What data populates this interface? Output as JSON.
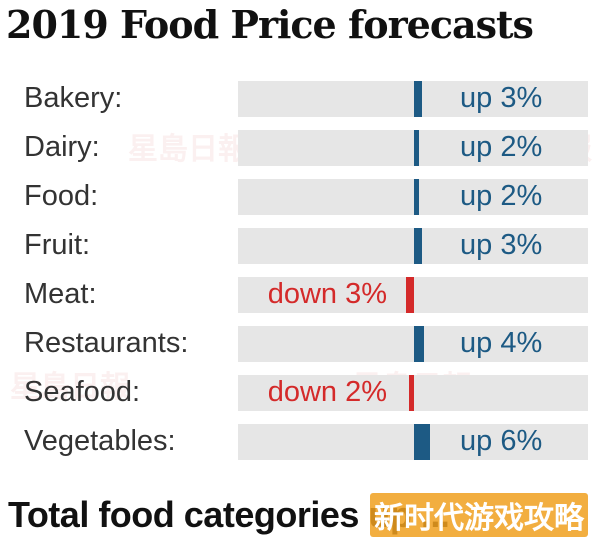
{
  "title": "2019 Food Price forecasts",
  "footer": "Total food categories up ...",
  "watermark_corner": "新时代游戏攻略",
  "colors": {
    "up": "#1d5a84",
    "down": "#d42a2a",
    "track": "#e6e6e6"
  },
  "chart_data": {
    "type": "bar",
    "title": "2019 Food Price forecasts",
    "categories": [
      "Bakery:",
      "Dairy:",
      "Food:",
      "Fruit:",
      "Meat:",
      "Restaurants:",
      "Seafood:",
      "Vegetables:"
    ],
    "values": [
      3,
      2,
      2,
      3,
      -3,
      4,
      -2,
      6
    ],
    "value_labels": [
      "up 3%",
      "up 2%",
      "up 2%",
      "up 3%",
      "down 3%",
      "up 4%",
      "down 2%",
      "up 6%"
    ],
    "unit": "%",
    "xlabel": "",
    "ylabel": "",
    "grid": false
  }
}
